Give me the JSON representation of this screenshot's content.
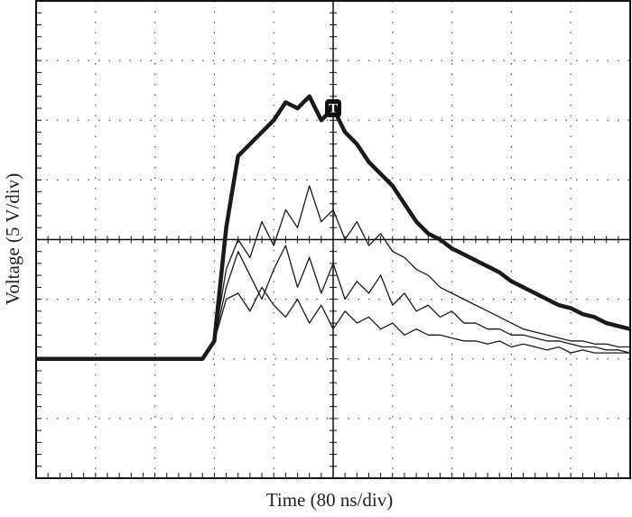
{
  "chart_data": {
    "type": "line",
    "x_label": "Time (80 ns/div)",
    "y_label": "Voltage (5 V/div)",
    "annotations": [
      {
        "text": "T",
        "x": 5.0,
        "y": 6.2
      }
    ],
    "x": [
      0,
      0.2,
      0.4,
      0.6,
      0.8,
      1,
      1.2,
      1.4,
      1.6,
      1.8,
      2,
      2.2,
      2.4,
      2.6,
      2.8,
      3,
      3.2,
      3.4,
      3.6,
      3.8,
      4,
      4.2,
      4.4,
      4.6,
      4.8,
      5,
      5.2,
      5.4,
      5.6,
      5.8,
      6,
      6.2,
      6.4,
      6.6,
      6.8,
      7,
      7.2,
      7.4,
      7.6,
      7.8,
      8,
      8.2,
      8.4,
      8.6,
      8.8,
      9,
      9.2,
      9.4,
      9.6,
      9.8,
      10
    ],
    "series": [
      {
        "color": "#1a1a1a",
        "values": [
          2,
          2,
          2,
          2,
          2,
          2,
          2,
          2,
          2,
          2,
          2,
          2,
          2,
          2,
          2,
          2.3,
          4.2,
          5.4,
          5.6,
          5.8,
          6.0,
          6.3,
          6.2,
          6.4,
          6.0,
          6.2,
          5.8,
          5.6,
          5.3,
          5.1,
          4.9,
          4.6,
          4.3,
          4.1,
          4.0,
          3.85,
          3.75,
          3.65,
          3.55,
          3.45,
          3.3,
          3.2,
          3.1,
          3.0,
          2.9,
          2.85,
          2.75,
          2.7,
          2.6,
          2.55,
          2.5
        ]
      },
      {
        "color": "#333333",
        "values": [
          2,
          2,
          2,
          2,
          2,
          2,
          2,
          2,
          2,
          2,
          2,
          2,
          2,
          2,
          2,
          2.3,
          3.5,
          4.0,
          3.7,
          4.3,
          3.9,
          4.5,
          4.2,
          4.9,
          4.3,
          4.5,
          4.0,
          4.3,
          3.9,
          4.1,
          3.8,
          3.7,
          3.5,
          3.4,
          3.2,
          3.1,
          3.0,
          2.9,
          2.8,
          2.7,
          2.6,
          2.5,
          2.45,
          2.4,
          2.35,
          2.3,
          2.3,
          2.25,
          2.25,
          2.2,
          2.2
        ]
      },
      {
        "color": "#333333",
        "values": [
          2,
          2,
          2,
          2,
          2,
          2,
          2,
          2,
          2,
          2,
          2,
          2,
          2,
          2,
          2,
          2.3,
          3.2,
          3.8,
          3.4,
          3.0,
          3.5,
          3.9,
          3.2,
          3.7,
          3.1,
          3.6,
          3.0,
          3.3,
          3.1,
          3.4,
          2.9,
          3.1,
          2.8,
          2.9,
          2.7,
          2.8,
          2.6,
          2.6,
          2.5,
          2.5,
          2.4,
          2.4,
          2.35,
          2.3,
          2.3,
          2.25,
          2.2,
          2.2,
          2.15,
          2.15,
          2.1
        ]
      },
      {
        "color": "#333333",
        "values": [
          2,
          2,
          2,
          2,
          2,
          2,
          2,
          2,
          2,
          2,
          2,
          2,
          2,
          2,
          2,
          2.3,
          3.0,
          3.1,
          2.8,
          3.2,
          2.9,
          2.7,
          3.0,
          2.6,
          2.9,
          2.5,
          2.8,
          2.6,
          2.7,
          2.5,
          2.6,
          2.4,
          2.5,
          2.4,
          2.4,
          2.35,
          2.3,
          2.3,
          2.25,
          2.3,
          2.2,
          2.25,
          2.2,
          2.15,
          2.2,
          2.1,
          2.15,
          2.1,
          2.1,
          2.1,
          2.1
        ]
      }
    ],
    "xlim": [
      0,
      10
    ],
    "ylim": [
      0,
      8
    ],
    "xticks": [
      0,
      1,
      2,
      3,
      4,
      5,
      6,
      7,
      8,
      9,
      10
    ],
    "yticks": [
      0,
      1,
      2,
      3,
      4,
      5,
      6,
      7,
      8
    ],
    "grid": true
  }
}
